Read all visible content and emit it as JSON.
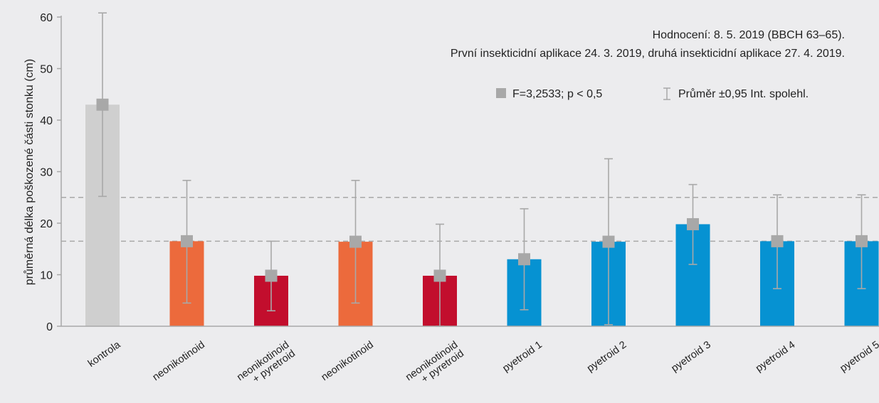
{
  "chart_data": {
    "type": "bar",
    "ylabel": "průměrná délka poškozené části stonku (cm)",
    "ylim": [
      0,
      60
    ],
    "yticks": [
      0,
      10,
      20,
      30,
      40,
      50,
      60
    ],
    "grid": false,
    "categories": [
      "kontrola",
      "neonikotinoid",
      "neonikotinoid\n+ pyretroid",
      "neonikotinoid",
      "neonikotinoid\n+ pyretroid",
      "pyetroid 1",
      "pyetroid 2",
      "pyetroid 3",
      "pyetroid 4",
      "pyetroid 5"
    ],
    "values": [
      43,
      16.5,
      9.8,
      16.4,
      9.8,
      13,
      16.4,
      19.8,
      16.5,
      16.5
    ],
    "ci_low": [
      25.2,
      4.5,
      3,
      4.5,
      0,
      3.2,
      0.3,
      12,
      7.3,
      7.3
    ],
    "ci_high": [
      60.8,
      28.3,
      16.5,
      28.3,
      19.8,
      22.8,
      32.5,
      27.5,
      25.5,
      25.5
    ],
    "bar_colors": [
      "#cfcfcf",
      "#ec6a3c",
      "#c20e2d",
      "#ec6a3c",
      "#c20e2d",
      "#0692d2",
      "#0692d2",
      "#0692d2",
      "#0692d2",
      "#0692d2"
    ],
    "reference_lines": [
      25,
      16.5
    ],
    "annotations": [
      "Hodnocení: 8. 5. 2019 (BBCH 63–65).",
      "První insekticidní aplikace 24. 3. 2019, druhá insekticidní aplikace 27. 4. 2019."
    ],
    "legend": {
      "placement": "top-right",
      "items": [
        {
          "label": "F=3,2533; p < 0,5",
          "marker": "square",
          "color": "#a8a8a8"
        },
        {
          "label": "Průměr ±0,95 Int. spolehl.",
          "marker": "errorbar",
          "color": "#a8a8a8"
        }
      ]
    },
    "colors": {
      "axis": "#a8a8a8",
      "marker": "#a8a8a8",
      "errorbar": "#a8a8a8",
      "refline": "#a8a8a8"
    }
  }
}
